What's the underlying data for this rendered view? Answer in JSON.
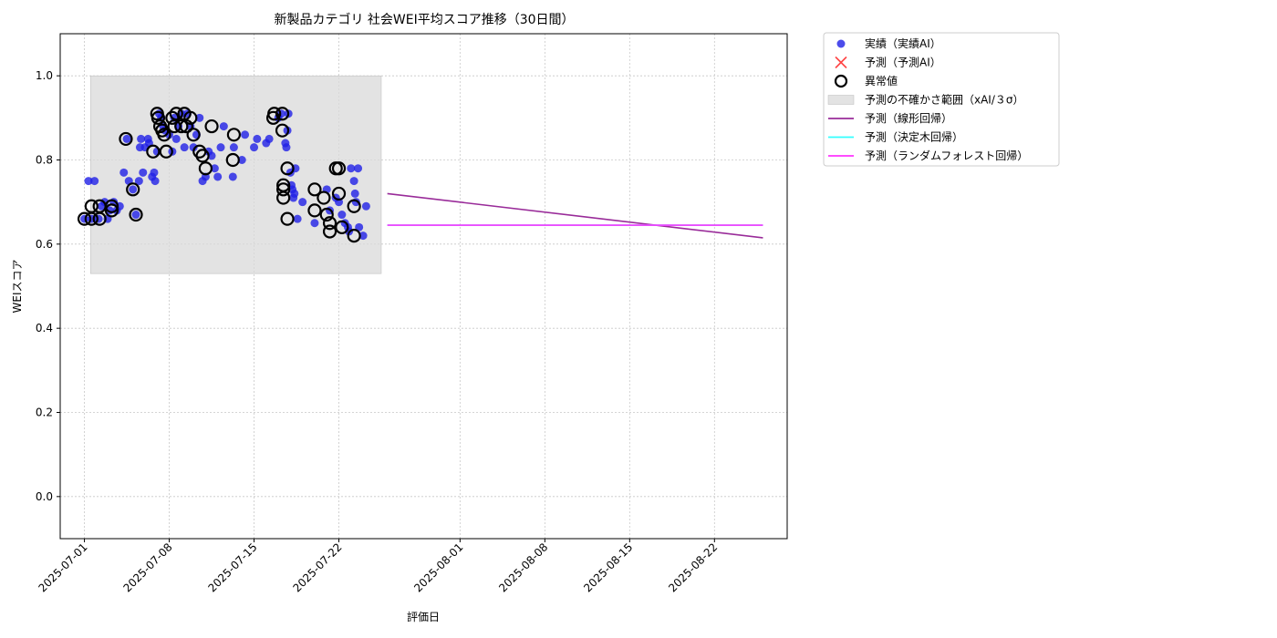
{
  "chart_data": {
    "type": "scatter",
    "title": "新製品カテゴリ 社会WEI平均スコア推移（30日間）",
    "xlabel": "評価日",
    "ylabel": "WEIスコア",
    "x_type": "date",
    "xlim": [
      "2025-06-29",
      "2025-08-28"
    ],
    "ylim": [
      -0.1,
      1.1
    ],
    "yticks": [
      0.0,
      0.2,
      0.4,
      0.6,
      0.8,
      1.0
    ],
    "ytick_labels": [
      "0.0",
      "0.2",
      "0.4",
      "0.6",
      "0.8",
      "1.0"
    ],
    "xticks": [
      "2025-07-01",
      "2025-07-08",
      "2025-07-15",
      "2025-07-22",
      "2025-08-01",
      "2025-08-08",
      "2025-08-15",
      "2025-08-22"
    ],
    "grid": true,
    "legend_position": "outside-right-top",
    "colors": {
      "actual": "#1f1fe6",
      "predicted": "#ff4444",
      "anomaly": "#000000",
      "band": "#d9d9d9",
      "linear": "#992b99",
      "tree": "#33ffff",
      "forest": "#ff33ff"
    },
    "legend": [
      {
        "key": "actual",
        "label": "実績（実績AI）",
        "marker": "dot"
      },
      {
        "key": "predicted",
        "label": "予測（予測AI）",
        "marker": "cross"
      },
      {
        "key": "anomaly",
        "label": "異常値",
        "marker": "ring"
      },
      {
        "key": "band",
        "label": "予測の不確かさ範囲（xAI/３σ）",
        "marker": "patch"
      },
      {
        "key": "linear",
        "label": "予測（線形回帰）",
        "marker": "line"
      },
      {
        "key": "tree",
        "label": "予測（決定木回帰）",
        "marker": "line"
      },
      {
        "key": "forest",
        "label": "予測（ランダムフォレスト回帰）",
        "marker": "line"
      }
    ],
    "uncertainty_band": {
      "x": [
        "2025-07-01 12:00",
        "2025-07-25 12:00"
      ],
      "y": [
        0.53,
        1.0
      ]
    },
    "actual_points": [
      [
        "2025-07-01 00:00",
        0.66
      ],
      [
        "2025-07-01 08:00",
        0.75
      ],
      [
        "2025-07-01 14:00",
        0.66
      ],
      [
        "2025-07-01 20:00",
        0.75
      ],
      [
        "2025-07-02 04:00",
        0.66
      ],
      [
        "2025-07-02 10:00",
        0.69
      ],
      [
        "2025-07-02 16:00",
        0.7
      ],
      [
        "2025-07-02 22:00",
        0.66
      ],
      [
        "2025-07-03 02:00",
        0.68
      ],
      [
        "2025-07-03 10:00",
        0.7
      ],
      [
        "2025-07-03 16:00",
        0.68
      ],
      [
        "2025-07-03 22:00",
        0.69
      ],
      [
        "2025-07-04 06:00",
        0.77
      ],
      [
        "2025-07-04 12:00",
        0.85
      ],
      [
        "2025-07-04 16:00",
        0.75
      ],
      [
        "2025-07-05 00:00",
        0.73
      ],
      [
        "2025-07-05 06:00",
        0.67
      ],
      [
        "2025-07-05 12:00",
        0.75
      ],
      [
        "2025-07-05 14:00",
        0.83
      ],
      [
        "2025-07-05 16:00",
        0.85
      ],
      [
        "2025-07-05 20:00",
        0.77
      ],
      [
        "2025-07-06 00:00",
        0.83
      ],
      [
        "2025-07-06 06:00",
        0.85
      ],
      [
        "2025-07-06 08:00",
        0.84
      ],
      [
        "2025-07-06 14:00",
        0.76
      ],
      [
        "2025-07-06 18:00",
        0.77
      ],
      [
        "2025-07-06 20:00",
        0.75
      ],
      [
        "2025-07-07 00:00",
        0.82
      ],
      [
        "2025-07-07 04:00",
        0.91
      ],
      [
        "2025-07-07 08:00",
        0.9
      ],
      [
        "2025-07-07 12:00",
        0.88
      ],
      [
        "2025-07-07 16:00",
        0.87
      ],
      [
        "2025-07-08 00:00",
        0.86
      ],
      [
        "2025-07-08 06:00",
        0.82
      ],
      [
        "2025-07-08 10:00",
        0.9
      ],
      [
        "2025-07-08 14:00",
        0.85
      ],
      [
        "2025-07-08 18:00",
        0.88
      ],
      [
        "2025-07-09 00:00",
        0.91
      ],
      [
        "2025-07-09 06:00",
        0.83
      ],
      [
        "2025-07-09 12:00",
        0.91
      ],
      [
        "2025-07-09 18:00",
        0.88
      ],
      [
        "2025-07-10 00:00",
        0.83
      ],
      [
        "2025-07-10 06:00",
        0.86
      ],
      [
        "2025-07-10 12:00",
        0.9
      ],
      [
        "2025-07-10 18:00",
        0.75
      ],
      [
        "2025-07-11 00:00",
        0.76
      ],
      [
        "2025-07-11 06:00",
        0.82
      ],
      [
        "2025-07-11 12:00",
        0.81
      ],
      [
        "2025-07-11 18:00",
        0.78
      ],
      [
        "2025-07-12 00:00",
        0.76
      ],
      [
        "2025-07-12 06:00",
        0.83
      ],
      [
        "2025-07-12 12:00",
        0.88
      ],
      [
        "2025-07-13 06:00",
        0.76
      ],
      [
        "2025-07-13 08:00",
        0.83
      ],
      [
        "2025-07-14 00:00",
        0.8
      ],
      [
        "2025-07-14 06:00",
        0.86
      ],
      [
        "2025-07-15 00:00",
        0.83
      ],
      [
        "2025-07-15 06:00",
        0.85
      ],
      [
        "2025-07-16 00:00",
        0.84
      ],
      [
        "2025-07-16 06:00",
        0.85
      ],
      [
        "2025-07-17 00:00",
        0.9
      ],
      [
        "2025-07-17 06:00",
        0.91
      ],
      [
        "2025-07-17 14:00",
        0.84
      ],
      [
        "2025-07-17 16:00",
        0.83
      ],
      [
        "2025-07-17 18:00",
        0.87
      ],
      [
        "2025-07-17 20:00",
        0.91
      ],
      [
        "2025-07-18 00:00",
        0.77
      ],
      [
        "2025-07-18 02:00",
        0.74
      ],
      [
        "2025-07-18 04:00",
        0.73
      ],
      [
        "2025-07-18 06:00",
        0.71
      ],
      [
        "2025-07-18 08:00",
        0.72
      ],
      [
        "2025-07-18 10:00",
        0.78
      ],
      [
        "2025-07-18 14:00",
        0.66
      ],
      [
        "2025-07-19 00:00",
        0.7
      ],
      [
        "2025-07-20 00:00",
        0.65
      ],
      [
        "2025-07-21 00:00",
        0.73
      ],
      [
        "2025-07-21 06:00",
        0.68
      ],
      [
        "2025-07-21 18:00",
        0.71
      ],
      [
        "2025-07-22 00:00",
        0.7
      ],
      [
        "2025-07-22 06:00",
        0.67
      ],
      [
        "2025-07-22 12:00",
        0.65
      ],
      [
        "2025-07-22 18:00",
        0.64
      ],
      [
        "2025-07-22 20:00",
        0.63
      ],
      [
        "2025-07-23 00:00",
        0.78
      ],
      [
        "2025-07-23 06:00",
        0.75
      ],
      [
        "2025-07-23 08:00",
        0.72
      ],
      [
        "2025-07-23 10:00",
        0.7
      ],
      [
        "2025-07-23 14:00",
        0.78
      ],
      [
        "2025-07-23 16:00",
        0.64
      ],
      [
        "2025-07-24 00:00",
        0.62
      ],
      [
        "2025-07-24 06:00",
        0.69
      ]
    ],
    "anomaly_points": [
      [
        "2025-07-01 00:00",
        0.66
      ],
      [
        "2025-07-01 14:00",
        0.66
      ],
      [
        "2025-07-01 14:00",
        0.69
      ],
      [
        "2025-07-02 06:00",
        0.66
      ],
      [
        "2025-07-02 06:00",
        0.69
      ],
      [
        "2025-07-03 06:00",
        0.68
      ],
      [
        "2025-07-03 06:00",
        0.69
      ],
      [
        "2025-07-04 10:00",
        0.85
      ],
      [
        "2025-07-05 00:00",
        0.73
      ],
      [
        "2025-07-05 06:00",
        0.67
      ],
      [
        "2025-07-06 16:00",
        0.82
      ],
      [
        "2025-07-07 00:00",
        0.91
      ],
      [
        "2025-07-07 02:00",
        0.9
      ],
      [
        "2025-07-07 06:00",
        0.88
      ],
      [
        "2025-07-07 10:00",
        0.87
      ],
      [
        "2025-07-07 14:00",
        0.86
      ],
      [
        "2025-07-07 18:00",
        0.82
      ],
      [
        "2025-07-08 06:00",
        0.9
      ],
      [
        "2025-07-08 10:00",
        0.88
      ],
      [
        "2025-07-08 14:00",
        0.91
      ],
      [
        "2025-07-09 00:00",
        0.88
      ],
      [
        "2025-07-09 06:00",
        0.91
      ],
      [
        "2025-07-09 10:00",
        0.88
      ],
      [
        "2025-07-09 18:00",
        0.9
      ],
      [
        "2025-07-10 00:00",
        0.86
      ],
      [
        "2025-07-10 12:00",
        0.82
      ],
      [
        "2025-07-10 18:00",
        0.81
      ],
      [
        "2025-07-11 00:00",
        0.78
      ],
      [
        "2025-07-11 12:00",
        0.88
      ],
      [
        "2025-07-13 06:00",
        0.8
      ],
      [
        "2025-07-13 08:00",
        0.86
      ],
      [
        "2025-07-16 14:00",
        0.9
      ],
      [
        "2025-07-16 16:00",
        0.91
      ],
      [
        "2025-07-17 08:00",
        0.91
      ],
      [
        "2025-07-17 08:00",
        0.87
      ],
      [
        "2025-07-17 10:00",
        0.74
      ],
      [
        "2025-07-17 10:00",
        0.73
      ],
      [
        "2025-07-17 10:00",
        0.71
      ],
      [
        "2025-07-17 18:00",
        0.78
      ],
      [
        "2025-07-17 18:00",
        0.66
      ],
      [
        "2025-07-20 00:00",
        0.73
      ],
      [
        "2025-07-20 00:00",
        0.68
      ],
      [
        "2025-07-20 18:00",
        0.71
      ],
      [
        "2025-07-21 00:00",
        0.67
      ],
      [
        "2025-07-21 06:00",
        0.65
      ],
      [
        "2025-07-21 06:00",
        0.63
      ],
      [
        "2025-07-21 18:00",
        0.78
      ],
      [
        "2025-07-22 00:00",
        0.72
      ],
      [
        "2025-07-22 00:00",
        0.78
      ],
      [
        "2025-07-22 06:00",
        0.64
      ],
      [
        "2025-07-23 06:00",
        0.62
      ],
      [
        "2025-07-23 06:00",
        0.69
      ]
    ],
    "prediction_lines": [
      {
        "key": "linear",
        "x": [
          "2025-07-26 00:00",
          "2025-08-26 00:00"
        ],
        "y": [
          0.72,
          0.615
        ]
      },
      {
        "key": "tree",
        "x": [
          "2025-07-26 00:00",
          "2025-08-26 00:00"
        ],
        "y": [
          0.645,
          0.645
        ]
      },
      {
        "key": "forest",
        "x": [
          "2025-07-26 00:00",
          "2025-08-26 00:00"
        ],
        "y": [
          0.645,
          0.645
        ]
      }
    ]
  }
}
